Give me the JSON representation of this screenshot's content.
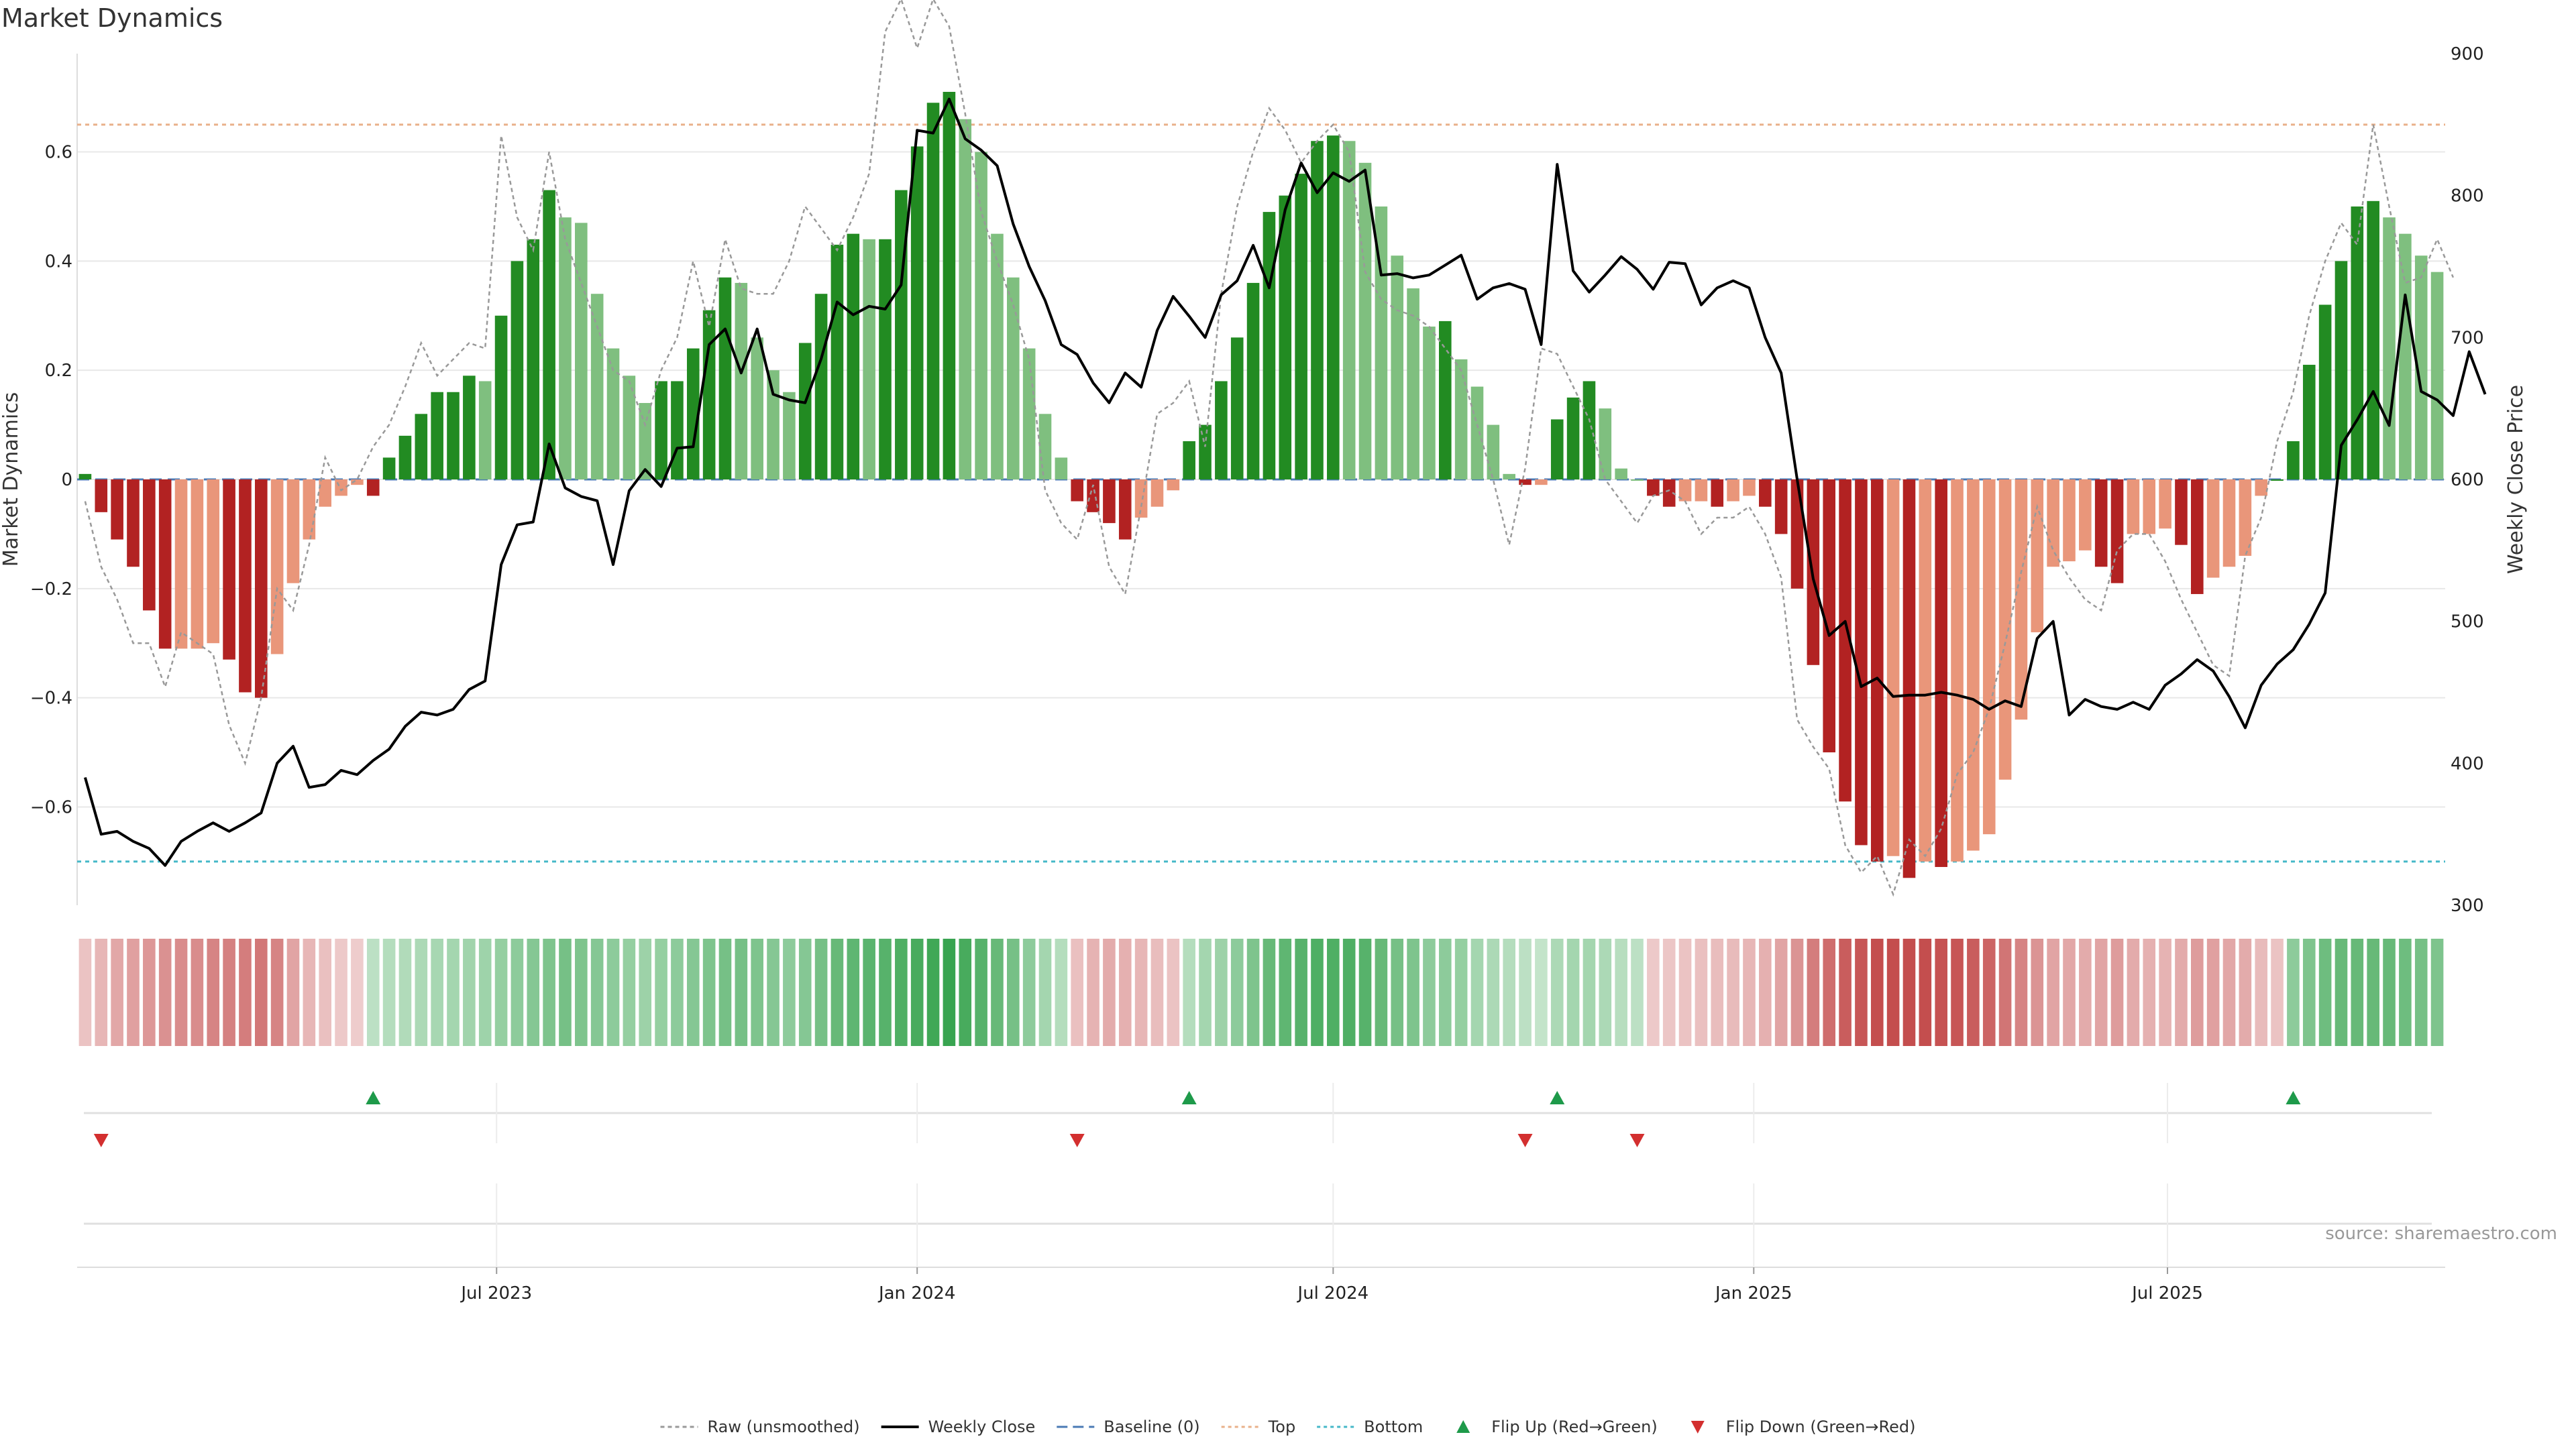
{
  "chart_data": {
    "title": "Market Dynamics",
    "type": "bar",
    "description_note": "",
    "y_left": {
      "label": "Market Dynamics",
      "ticks": [
        -0.6,
        -0.4,
        -0.2,
        0,
        0.2,
        0.4,
        0.6
      ],
      "tick_labels": [
        "−0.6",
        "−0.4",
        "−0.2",
        "0",
        "0.2",
        "0.4",
        "0.6"
      ],
      "range": [
        -0.78,
        0.78
      ]
    },
    "y_right": {
      "label": "Weekly Close Price",
      "ticks": [
        300,
        400,
        500,
        600,
        700,
        800,
        900
      ],
      "tick_labels": [
        "300",
        "400",
        "500",
        "600",
        "700",
        "800",
        "900"
      ],
      "range": [
        300,
        900
      ]
    },
    "x_axis": {
      "start": "2023-01-02",
      "end": "2025-10-27",
      "ticks": [
        {
          "date": "2023-07-01",
          "label": "Jul 2023"
        },
        {
          "date": "2024-01-01",
          "label": "Jan 2024"
        },
        {
          "date": "2024-07-01",
          "label": "Jul 2024"
        },
        {
          "date": "2025-01-01",
          "label": "Jan 2025"
        },
        {
          "date": "2025-07-01",
          "label": "Jul 2025"
        }
      ]
    },
    "weeks": 148,
    "series": {
      "smoothed": [
        0.01,
        -0.06,
        -0.11,
        -0.16,
        -0.24,
        -0.31,
        -0.31,
        -0.31,
        -0.3,
        -0.33,
        -0.39,
        -0.4,
        -0.32,
        -0.19,
        -0.11,
        -0.05,
        -0.03,
        -0.01,
        -0.03,
        0.04,
        0.08,
        0.12,
        0.16,
        0.16,
        0.19,
        0.18,
        0.3,
        0.4,
        0.44,
        0.53,
        0.48,
        0.47,
        0.34,
        0.24,
        0.19,
        0.14,
        0.18,
        0.18,
        0.24,
        0.31,
        0.37,
        0.36,
        0.26,
        0.2,
        0.16,
        0.25,
        0.34,
        0.43,
        0.45,
        0.44,
        0.44,
        0.53,
        0.61,
        0.69,
        0.71,
        0.66,
        0.6,
        0.45,
        0.37,
        0.24,
        0.12,
        0.04,
        -0.04,
        -0.06,
        -0.08,
        -0.11,
        -0.07,
        -0.05,
        -0.02,
        0.07,
        0.1,
        0.18,
        0.26,
        0.36,
        0.49,
        0.52,
        0.56,
        0.62,
        0.63,
        0.62,
        0.58,
        0.5,
        0.41,
        0.35,
        0.28,
        0.29,
        0.22,
        0.17,
        0.1,
        0.01,
        -0.01,
        -0.01,
        0.11,
        0.15,
        0.18,
        0.13,
        0.02,
        0,
        -0.03,
        -0.05,
        -0.04,
        -0.04,
        -0.05,
        -0.04,
        -0.03,
        -0.05,
        -0.1,
        -0.2,
        -0.34,
        -0.5,
        -0.59,
        -0.67,
        -0.7,
        -0.69,
        -0.73,
        -0.7,
        -0.71,
        -0.7,
        -0.68,
        -0.65,
        -0.55,
        -0.44,
        -0.28,
        -0.16,
        -0.15,
        -0.13,
        -0.16,
        -0.19,
        -0.1,
        -0.1,
        -0.09,
        -0.12,
        -0.21,
        -0.18,
        -0.16,
        -0.14,
        -0.03,
        0,
        0.07,
        0.21,
        0.32,
        0.4,
        0.5,
        0.51,
        0.48,
        0.45,
        0.41,
        0.38
      ],
      "raw": [
        -0.04,
        -0.16,
        -0.22,
        -0.3,
        -0.3,
        -0.38,
        -0.28,
        -0.3,
        -0.32,
        -0.45,
        -0.52,
        -0.4,
        -0.2,
        -0.24,
        -0.12,
        0.04,
        -0.02,
        0,
        0.06,
        0.1,
        0.17,
        0.25,
        0.19,
        0.22,
        0.25,
        0.24,
        0.63,
        0.48,
        0.42,
        0.6,
        0.44,
        0.36,
        0.28,
        0.2,
        0.18,
        0.1,
        0.2,
        0.26,
        0.4,
        0.28,
        0.44,
        0.35,
        0.34,
        0.34,
        0.4,
        0.5,
        0.46,
        0.42,
        0.48,
        0.56,
        0.82,
        0.88,
        0.79,
        0.88,
        0.83,
        0.67,
        0.49,
        0.4,
        0.32,
        0.22,
        -0.02,
        -0.08,
        -0.11,
        -0.01,
        -0.16,
        -0.21,
        -0.05,
        0.12,
        0.14,
        0.18,
        0.06,
        0.34,
        0.5,
        0.6,
        0.68,
        0.64,
        0.58,
        0.62,
        0.65,
        0.6,
        0.38,
        0.33,
        0.31,
        0.3,
        0.28,
        0.24,
        0.2,
        0.1,
        0,
        -0.12,
        0.02,
        0.24,
        0.23,
        0.17,
        0.11,
        0,
        -0.04,
        -0.08,
        -0.03,
        -0.02,
        -0.04,
        -0.1,
        -0.07,
        -0.07,
        -0.05,
        -0.1,
        -0.18,
        -0.44,
        -0.49,
        -0.53,
        -0.67,
        -0.72,
        -0.69,
        -0.76,
        -0.66,
        -0.69,
        -0.64,
        -0.54,
        -0.5,
        -0.42,
        -0.3,
        -0.17,
        -0.05,
        -0.13,
        -0.18,
        -0.22,
        -0.24,
        -0.13,
        -0.1,
        -0.1,
        -0.15,
        -0.22,
        -0.28,
        -0.34,
        -0.36,
        -0.14,
        -0.07,
        0.07,
        0.16,
        0.3,
        0.4,
        0.47,
        0.43,
        0.65,
        0.5,
        0.36,
        0.37,
        0.44,
        0.37
      ],
      "close": [
        390,
        350,
        352,
        345,
        340,
        328,
        345,
        352,
        358,
        352,
        358,
        365,
        400,
        412,
        383,
        385,
        395,
        392,
        402,
        410,
        426,
        436,
        434,
        438,
        452,
        458,
        540,
        568,
        570,
        625,
        594,
        588,
        585,
        540,
        592,
        607,
        595,
        622,
        623,
        695,
        706,
        675,
        706,
        660,
        656,
        654,
        685,
        725,
        716,
        722,
        720,
        737,
        846,
        844,
        868,
        840,
        832,
        821,
        780,
        750,
        726,
        695,
        688,
        668,
        654,
        675,
        665,
        705,
        729,
        715,
        700,
        730,
        740,
        765,
        735,
        790,
        823,
        802,
        816,
        810,
        818,
        744,
        745,
        742,
        744,
        751,
        758,
        727,
        735,
        738,
        734,
        695,
        822,
        747,
        732,
        744,
        757,
        748,
        734,
        753,
        752,
        723,
        735,
        740,
        735,
        700,
        675,
        600,
        530,
        490,
        500,
        454,
        460,
        447,
        448,
        448,
        450,
        448,
        445,
        438,
        444,
        440,
        488,
        500,
        434,
        445,
        440,
        438,
        443,
        438,
        455,
        463,
        473,
        465,
        447,
        425,
        455,
        470,
        480,
        498,
        520,
        624,
        642,
        662,
        638,
        730,
        662,
        656,
        645,
        690,
        660
      ],
      "bg_level": [
        -0.1,
        -0.18,
        -0.28,
        -0.32,
        -0.38,
        -0.42,
        -0.45,
        -0.45,
        -0.5,
        -0.52,
        -0.55,
        -0.58,
        -0.5,
        -0.3,
        -0.18,
        -0.12,
        -0.06,
        -0.04,
        0.15,
        0.2,
        0.22,
        0.25,
        0.28,
        0.3,
        0.32,
        0.34,
        0.4,
        0.45,
        0.5,
        0.55,
        0.6,
        0.55,
        0.5,
        0.45,
        0.4,
        0.35,
        0.4,
        0.45,
        0.5,
        0.55,
        0.6,
        0.6,
        0.55,
        0.5,
        0.45,
        0.5,
        0.6,
        0.7,
        0.75,
        0.78,
        0.8,
        0.85,
        0.9,
        0.95,
        1,
        0.9,
        0.8,
        0.7,
        0.6,
        0.45,
        0.3,
        0.2,
        -0.12,
        -0.2,
        -0.25,
        -0.22,
        -0.18,
        -0.14,
        -0.1,
        0.2,
        0.3,
        0.35,
        0.45,
        0.55,
        0.7,
        0.75,
        0.8,
        0.85,
        0.85,
        0.85,
        0.8,
        0.7,
        0.6,
        0.55,
        0.45,
        0.45,
        0.4,
        0.3,
        0.25,
        0.2,
        0.15,
        0.1,
        0.25,
        0.3,
        0.3,
        0.25,
        0.18,
        0.15,
        -0.06,
        -0.08,
        -0.1,
        -0.12,
        -0.14,
        -0.15,
        -0.18,
        -0.22,
        -0.3,
        -0.4,
        -0.55,
        -0.65,
        -0.75,
        -0.8,
        -0.85,
        -0.85,
        -0.85,
        -0.85,
        -0.82,
        -0.8,
        -0.75,
        -0.7,
        -0.6,
        -0.5,
        -0.4,
        -0.3,
        -0.28,
        -0.25,
        -0.3,
        -0.35,
        -0.25,
        -0.22,
        -0.2,
        -0.25,
        -0.35,
        -0.32,
        -0.28,
        -0.25,
        -0.15,
        -0.1,
        0.45,
        0.55,
        0.65,
        0.7,
        0.7,
        0.7,
        0.7,
        0.65,
        0.6,
        0.55
      ],
      "flip_up_weeks": [
        18,
        69,
        92,
        138
      ],
      "flip_down_weeks": [
        1,
        62,
        90,
        97
      ]
    },
    "thresholds": {
      "baseline": 0,
      "top": 0.65,
      "bottom": -0.7
    },
    "legend": {
      "placement": "bottom-center",
      "items": [
        {
          "key": "raw",
          "label": "Raw (unsmoothed)"
        },
        {
          "key": "close",
          "label": "Weekly Close"
        },
        {
          "key": "baseline",
          "label": "Baseline (0)"
        },
        {
          "key": "top",
          "label": "Top"
        },
        {
          "key": "bottom",
          "label": "Bottom"
        },
        {
          "key": "flip_up",
          "label": "Flip Up (Red→Green)"
        },
        {
          "key": "flip_down",
          "label": "Flip Down (Green→Red)"
        }
      ]
    },
    "source": "source: sharemaestro.com",
    "colors": {
      "pos_strong": "#228b22",
      "pos_weak": "#7fbf7f",
      "neg_strong": "#b22222",
      "neg_weak": "#e9967a",
      "raw_line": "#999999",
      "close_line": "#000000",
      "baseline": "#4a7ab5",
      "top": "#e9b08a",
      "bottom": "#45b8c8",
      "flip_up": "#1e9a4a",
      "flip_down": "#d32f2f",
      "grid": "#e8e8e8"
    }
  }
}
